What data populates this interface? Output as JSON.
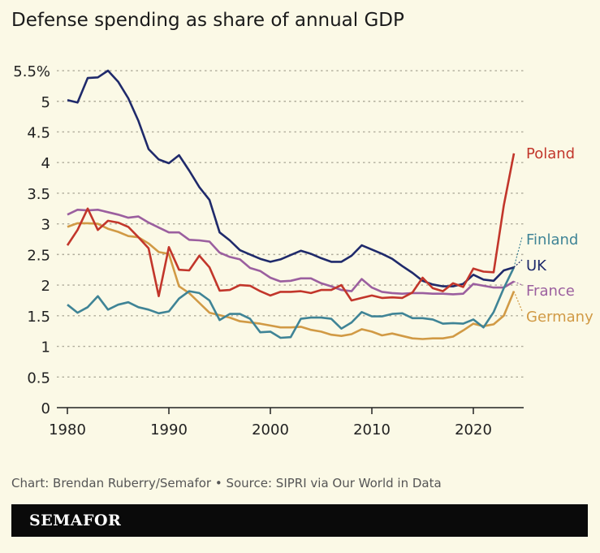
{
  "chart_data": {
    "type": "line",
    "title": "Defense spending as share of annual GDP",
    "xlabel": "",
    "ylabel": "",
    "xlim": [
      1980,
      2024
    ],
    "ylim": [
      0,
      5.5
    ],
    "x_ticks": [
      1980,
      1990,
      2000,
      2010,
      2020
    ],
    "y_ticks": [
      "0",
      "0.5",
      "1",
      "1.5",
      "2",
      "2.5",
      "3",
      "3.5",
      "4",
      "4.5",
      "5",
      "5.5%"
    ],
    "grid": "horizontal dotted",
    "legend": "direct labels at right",
    "x_start": 1980,
    "series": [
      {
        "name": "Poland",
        "color": "#c2362b",
        "values": [
          2.65,
          2.9,
          3.25,
          2.9,
          3.05,
          3.02,
          2.95,
          2.78,
          2.6,
          1.82,
          2.62,
          2.25,
          2.24,
          2.48,
          2.29,
          1.91,
          1.92,
          2.0,
          1.99,
          1.9,
          1.83,
          1.89,
          1.89,
          1.9,
          1.87,
          1.92,
          1.92,
          2.0,
          1.75,
          1.79,
          1.83,
          1.79,
          1.8,
          1.79,
          1.88,
          2.12,
          1.95,
          1.9,
          2.03,
          1.97,
          2.27,
          2.22,
          2.21,
          3.3,
          4.15
        ]
      },
      {
        "name": "Finland",
        "color": "#3f8496",
        "values": [
          1.68,
          1.55,
          1.64,
          1.82,
          1.6,
          1.68,
          1.72,
          1.64,
          1.6,
          1.54,
          1.57,
          1.78,
          1.9,
          1.87,
          1.75,
          1.43,
          1.53,
          1.53,
          1.45,
          1.23,
          1.24,
          1.14,
          1.15,
          1.45,
          1.47,
          1.47,
          1.45,
          1.29,
          1.39,
          1.56,
          1.49,
          1.49,
          1.53,
          1.54,
          1.46,
          1.46,
          1.44,
          1.37,
          1.38,
          1.37,
          1.44,
          1.31,
          1.56,
          1.95,
          2.29
        ]
      },
      {
        "name": "UK",
        "color": "#1f2a6b",
        "values": [
          5.02,
          4.98,
          5.38,
          5.39,
          5.5,
          5.32,
          5.05,
          4.68,
          4.22,
          4.05,
          3.99,
          4.12,
          3.87,
          3.6,
          3.39,
          2.86,
          2.73,
          2.57,
          2.5,
          2.43,
          2.38,
          2.42,
          2.49,
          2.56,
          2.51,
          2.44,
          2.38,
          2.38,
          2.48,
          2.65,
          2.58,
          2.51,
          2.43,
          2.31,
          2.2,
          2.07,
          2.01,
          1.98,
          1.98,
          2.02,
          2.17,
          2.09,
          2.07,
          2.24,
          2.29
        ]
      },
      {
        "name": "France",
        "color": "#9b5f9f",
        "values": [
          3.15,
          3.23,
          3.22,
          3.23,
          3.19,
          3.15,
          3.1,
          3.12,
          3.02,
          2.94,
          2.86,
          2.86,
          2.74,
          2.73,
          2.71,
          2.53,
          2.46,
          2.42,
          2.28,
          2.23,
          2.12,
          2.06,
          2.07,
          2.11,
          2.11,
          2.03,
          1.98,
          1.92,
          1.9,
          2.1,
          1.96,
          1.89,
          1.87,
          1.86,
          1.87,
          1.87,
          1.86,
          1.86,
          1.85,
          1.86,
          2.02,
          1.99,
          1.96,
          1.96,
          2.06
        ]
      },
      {
        "name": "Germany",
        "color": "#d19a45",
        "values": [
          2.95,
          3.01,
          3.01,
          3.0,
          2.92,
          2.87,
          2.8,
          2.78,
          2.68,
          2.54,
          2.51,
          1.98,
          1.87,
          1.71,
          1.55,
          1.51,
          1.47,
          1.41,
          1.39,
          1.37,
          1.34,
          1.31,
          1.31,
          1.32,
          1.27,
          1.24,
          1.19,
          1.17,
          1.2,
          1.28,
          1.24,
          1.18,
          1.21,
          1.17,
          1.13,
          1.12,
          1.13,
          1.13,
          1.16,
          1.26,
          1.37,
          1.33,
          1.36,
          1.5,
          1.9
        ]
      }
    ]
  },
  "footer": {
    "credit": "Chart: Brendan Ruberry/Semafor • Source: SIPRI via Our World in Data",
    "brand": "SEMAFOR"
  }
}
